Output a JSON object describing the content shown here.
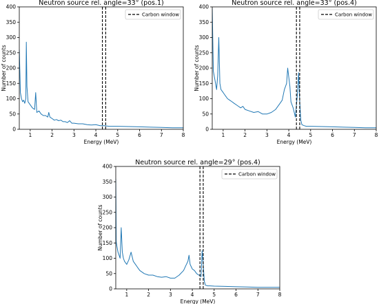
{
  "figure_title": "",
  "chart_data": [
    {
      "type": "line",
      "title": "Neutron source rel. angle=33° (pos.1)",
      "xlabel": "Energy (MeV)",
      "ylabel": "Number of counts",
      "xlim": [
        0.5,
        8
      ],
      "ylim": [
        0,
        400
      ],
      "xticks": [
        1,
        2,
        3,
        4,
        5,
        6,
        7,
        8
      ],
      "yticks": [
        0,
        50,
        100,
        150,
        200,
        250,
        300,
        350,
        400
      ],
      "grid": false,
      "legend_position": "top-right",
      "legend": [
        {
          "label": "Carbon window",
          "style": "dashed",
          "color": "#000000"
        }
      ],
      "vlines": [
        4.3,
        4.45
      ],
      "series": [
        {
          "color": "#1f77b4",
          "x": [
            0.5,
            0.55,
            0.6,
            0.65,
            0.7,
            0.75,
            0.8,
            0.82,
            0.85,
            0.9,
            1.0,
            1.1,
            1.2,
            1.25,
            1.3,
            1.4,
            1.5,
            1.6,
            1.7,
            1.8,
            1.85,
            1.9,
            2.0,
            2.1,
            2.2,
            2.3,
            2.4,
            2.5,
            2.6,
            2.7,
            2.8,
            2.9,
            3.0,
            3.2,
            3.4,
            3.6,
            3.8,
            4.0,
            4.2,
            4.4,
            4.6,
            4.8,
            5.0,
            5.5,
            6.0,
            6.5,
            7.0,
            7.5,
            8.0
          ],
          "y": [
            260,
            120,
            100,
            90,
            95,
            85,
            100,
            285,
            140,
            90,
            80,
            70,
            65,
            120,
            55,
            60,
            50,
            45,
            45,
            40,
            55,
            40,
            35,
            30,
            32,
            28,
            30,
            25,
            25,
            22,
            28,
            20,
            20,
            18,
            18,
            15,
            14,
            15,
            12,
            12,
            10,
            10,
            10,
            9,
            8,
            7,
            6,
            5,
            5
          ]
        }
      ]
    },
    {
      "type": "line",
      "title": "Neutron source rel. angle=33° (pos.4)",
      "xlabel": "Energy (MeV)",
      "ylabel": "Number of counts",
      "xlim": [
        0.5,
        8
      ],
      "ylim": [
        0,
        400
      ],
      "xticks": [
        1,
        2,
        3,
        4,
        5,
        6,
        7,
        8
      ],
      "yticks": [
        0,
        50,
        100,
        150,
        200,
        250,
        300,
        350,
        400
      ],
      "grid": false,
      "legend_position": "top-right",
      "legend": [
        {
          "label": "Carbon window",
          "style": "dashed",
          "color": "#000000"
        }
      ],
      "vlines": [
        4.35,
        4.5
      ],
      "series": [
        {
          "color": "#1f77b4",
          "x": [
            0.5,
            0.55,
            0.6,
            0.65,
            0.7,
            0.75,
            0.8,
            0.85,
            0.9,
            1.0,
            1.1,
            1.2,
            1.3,
            1.4,
            1.5,
            1.6,
            1.7,
            1.8,
            1.9,
            2.0,
            2.2,
            2.4,
            2.6,
            2.8,
            3.0,
            3.2,
            3.4,
            3.6,
            3.7,
            3.8,
            3.9,
            3.95,
            4.0,
            4.05,
            4.1,
            4.2,
            4.3,
            4.4,
            4.45,
            4.5,
            4.55,
            4.6,
            4.7,
            4.8,
            5.0,
            5.5,
            6.0,
            6.5,
            7.0,
            7.5,
            8.0
          ],
          "y": [
            395,
            190,
            170,
            150,
            130,
            175,
            300,
            150,
            130,
            120,
            110,
            100,
            95,
            90,
            85,
            80,
            75,
            70,
            75,
            65,
            60,
            55,
            58,
            50,
            50,
            55,
            65,
            85,
            95,
            130,
            150,
            200,
            170,
            140,
            90,
            70,
            40,
            120,
            185,
            95,
            30,
            15,
            12,
            10,
            10,
            9,
            8,
            7,
            6,
            5,
            5
          ]
        }
      ]
    },
    {
      "type": "line",
      "title": "Neutron source rel. angle=29° (pos.4)",
      "xlabel": "Energy (MeV)",
      "ylabel": "Number of counts",
      "xlim": [
        0.5,
        8
      ],
      "ylim": [
        0,
        400
      ],
      "xticks": [
        1,
        2,
        3,
        4,
        5,
        6,
        7,
        8
      ],
      "yticks": [
        0,
        50,
        100,
        150,
        200,
        250,
        300,
        350,
        400
      ],
      "grid": false,
      "legend_position": "top-right",
      "legend": [
        {
          "label": "Carbon window",
          "style": "dashed",
          "color": "#000000"
        }
      ],
      "vlines": [
        4.35,
        4.5
      ],
      "series": [
        {
          "color": "#1f77b4",
          "x": [
            0.5,
            0.52,
            0.55,
            0.6,
            0.65,
            0.7,
            0.75,
            0.8,
            0.85,
            0.9,
            1.0,
            1.1,
            1.2,
            1.3,
            1.4,
            1.5,
            1.6,
            1.8,
            2.0,
            2.2,
            2.4,
            2.6,
            2.8,
            3.0,
            3.2,
            3.4,
            3.6,
            3.7,
            3.8,
            3.85,
            3.9,
            4.0,
            4.1,
            4.2,
            4.3,
            4.4,
            4.45,
            4.5,
            4.55,
            4.6,
            4.7,
            4.8,
            5.0,
            5.5,
            6.0,
            6.5,
            7.0,
            7.5,
            8.0
          ],
          "y": [
            360,
            155,
            140,
            120,
            110,
            100,
            200,
            120,
            100,
            90,
            80,
            95,
            120,
            90,
            80,
            70,
            60,
            50,
            45,
            45,
            40,
            38,
            40,
            35,
            35,
            45,
            60,
            75,
            90,
            110,
            80,
            65,
            60,
            50,
            45,
            40,
            125,
            80,
            25,
            12,
            10,
            10,
            9,
            8,
            7,
            6,
            5,
            5,
            5
          ]
        }
      ]
    }
  ]
}
